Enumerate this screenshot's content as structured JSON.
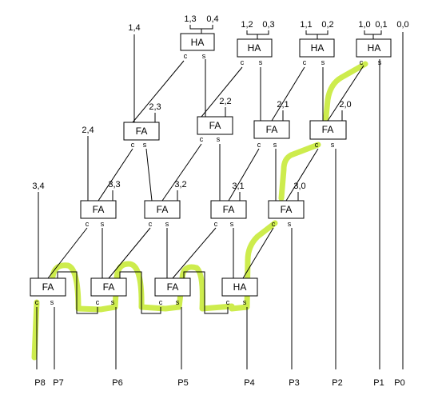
{
  "gates": [
    {
      "id": "ha-r1-1",
      "label": "HA"
    },
    {
      "id": "ha-r1-2",
      "label": "HA"
    },
    {
      "id": "ha-r1-3",
      "label": "HA"
    },
    {
      "id": "ha-r1-4",
      "label": "HA"
    },
    {
      "id": "fa-r2-1",
      "label": "FA"
    },
    {
      "id": "fa-r2-2",
      "label": "FA"
    },
    {
      "id": "fa-r2-3",
      "label": "FA"
    },
    {
      "id": "fa-r2-4",
      "label": "FA"
    },
    {
      "id": "fa-r3-1",
      "label": "FA"
    },
    {
      "id": "fa-r3-2",
      "label": "FA"
    },
    {
      "id": "fa-r3-3",
      "label": "FA"
    },
    {
      "id": "fa-r3-4",
      "label": "FA"
    },
    {
      "id": "fa-r4-1",
      "label": "FA"
    },
    {
      "id": "fa-r4-2",
      "label": "FA"
    },
    {
      "id": "fa-r4-3",
      "label": "FA"
    },
    {
      "id": "ha-r4-4",
      "label": "HA"
    }
  ],
  "pin_carry": "c",
  "pin_sum": "s",
  "inputs": [
    "1,3",
    "0,4",
    "1,2",
    "0,3",
    "1,1",
    "0,2",
    "1,0",
    "0,1",
    "0,0",
    "1,4",
    "2,3",
    "2,2",
    "2,1",
    "2,0",
    "2,4",
    "3,3",
    "3,2",
    "3,1",
    "3,0",
    "3,4"
  ],
  "outputs": [
    "P8",
    "P7",
    "P6",
    "P5",
    "P4",
    "P3",
    "P2",
    "P1",
    "P0"
  ],
  "highlight_color": "#c8ea3a"
}
